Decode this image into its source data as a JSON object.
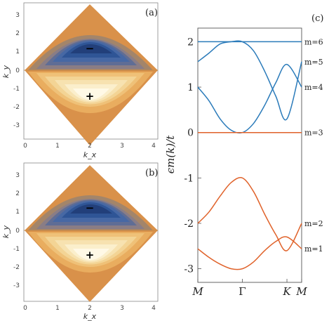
{
  "chart_data": [
    {
      "type": "heatmap",
      "panel_label": "(a)",
      "xlabel": "k_x",
      "ylabel": "k_y",
      "xlim": [
        -0.3,
        4.4
      ],
      "ylim": [
        -3.7,
        3.7
      ],
      "xticks": [
        "0",
        "1",
        "2",
        "3",
        "4"
      ],
      "yticks": [
        "3",
        "2",
        "1",
        "0",
        "-1",
        "-2",
        "-3"
      ],
      "annotations": [
        {
          "text": "−",
          "x": 2.1,
          "y": 1.4
        },
        {
          "text": "+",
          "x": 2.1,
          "y": -1.4
        }
      ]
    },
    {
      "type": "heatmap",
      "panel_label": "(b)",
      "xlabel": "k_x",
      "ylabel": "k_y",
      "xlim": [
        -0.3,
        4.4
      ],
      "ylim": [
        -3.7,
        3.7
      ],
      "xticks": [
        "0",
        "1",
        "2",
        "3",
        "4"
      ],
      "yticks": [
        "3",
        "2",
        "1",
        "0",
        "-1",
        "-2",
        "-3"
      ],
      "annotations": [
        {
          "text": "−",
          "x": 2.1,
          "y": 1.4
        },
        {
          "text": "+",
          "x": 2.1,
          "y": -1.4
        }
      ]
    },
    {
      "type": "line",
      "panel_label": "(c)",
      "ylabel": "ϵm(k)/t",
      "x_ticks": [
        "M",
        "Γ",
        "K",
        "M"
      ],
      "x_tick_positions": [
        0,
        1,
        2,
        2.33
      ],
      "xlim": [
        0,
        2.33
      ],
      "ylim": [
        -3.3,
        2.3
      ],
      "yticks": [
        "2",
        "1",
        "0",
        "-1",
        "-2",
        "-3"
      ],
      "series": [
        {
          "name": "m=6",
          "color": "#2b7bba",
          "x": [
            0,
            0.5,
            1,
            1.5,
            2,
            2.33
          ],
          "values": [
            2,
            2,
            2,
            2,
            2,
            2
          ]
        },
        {
          "name": "m=5",
          "color": "#2b7bba",
          "x": [
            0,
            0.25,
            0.5,
            0.75,
            1,
            1.25,
            1.5,
            1.75,
            2,
            2.33
          ],
          "values": [
            1.56,
            1.75,
            1.95,
            2.0,
            2.0,
            1.8,
            1.35,
            0.8,
            0.3,
            1.56
          ]
        },
        {
          "name": "m=4",
          "color": "#2b7bba",
          "x": [
            0,
            0.25,
            0.5,
            0.75,
            1,
            1.25,
            1.5,
            1.75,
            2,
            2.33
          ],
          "values": [
            1.0,
            0.7,
            0.3,
            0.05,
            0.0,
            0.2,
            0.6,
            1.1,
            1.5,
            1.0
          ]
        },
        {
          "name": "m=3",
          "color": "#e0622a",
          "x": [
            0,
            0.5,
            1,
            1.5,
            2,
            2.33
          ],
          "values": [
            0,
            0,
            0,
            0,
            0,
            0
          ]
        },
        {
          "name": "m=2",
          "color": "#e0622a",
          "x": [
            0,
            0.25,
            0.5,
            0.75,
            1,
            1.25,
            1.5,
            1.75,
            2,
            2.33
          ],
          "values": [
            -2.0,
            -1.75,
            -1.4,
            -1.1,
            -1.0,
            -1.3,
            -1.8,
            -2.25,
            -2.6,
            -2.0
          ]
        },
        {
          "name": "m=1",
          "color": "#e0622a",
          "x": [
            0,
            0.25,
            0.5,
            0.75,
            1,
            1.25,
            1.5,
            1.75,
            2,
            2.33
          ],
          "values": [
            -2.56,
            -2.75,
            -2.9,
            -3.0,
            -3.0,
            -2.85,
            -2.6,
            -2.4,
            -2.3,
            -2.56
          ]
        }
      ]
    }
  ]
}
